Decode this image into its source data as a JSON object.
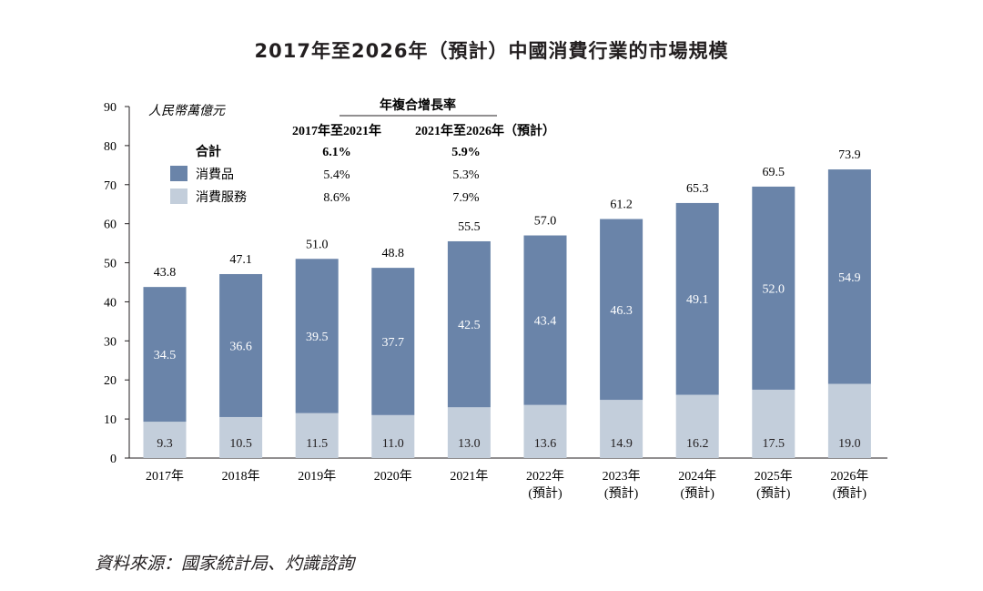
{
  "chart_data": {
    "type": "bar",
    "stacked": true,
    "title": "2017年至2026年（預計）中國消費行業的市場規模",
    "unit_label": "人民幣萬億元",
    "ylim": [
      0,
      90
    ],
    "yticks": [
      "0",
      "10",
      "20",
      "30",
      "40",
      "50",
      "60",
      "70",
      "80",
      "90"
    ],
    "categories": [
      {
        "year": "2017年",
        "note": ""
      },
      {
        "year": "2018年",
        "note": ""
      },
      {
        "year": "2019年",
        "note": ""
      },
      {
        "year": "2020年",
        "note": ""
      },
      {
        "year": "2021年",
        "note": ""
      },
      {
        "year": "2022年",
        "note": "(預計)"
      },
      {
        "year": "2023年",
        "note": "(預計)"
      },
      {
        "year": "2024年",
        "note": "(預計)"
      },
      {
        "year": "2025年",
        "note": "(預計)"
      },
      {
        "year": "2026年",
        "note": "(預計)"
      }
    ],
    "series": [
      {
        "name": "消費服務",
        "color": "#c3cedb",
        "values": [
          9.3,
          10.5,
          11.5,
          11.0,
          13.0,
          13.6,
          14.9,
          16.2,
          17.5,
          19.0
        ],
        "labels": [
          "9.3",
          "10.5",
          "11.5",
          "11.0",
          "13.0",
          "13.6",
          "14.9",
          "16.2",
          "17.5",
          "19.0"
        ]
      },
      {
        "name": "消費品",
        "color": "#6a84a9",
        "values": [
          34.5,
          36.6,
          39.5,
          37.7,
          42.5,
          43.4,
          46.3,
          49.1,
          52.0,
          54.9
        ],
        "labels": [
          "34.5",
          "36.6",
          "39.5",
          "37.7",
          "42.5",
          "43.4",
          "46.3",
          "49.1",
          "52.0",
          "54.9"
        ]
      }
    ],
    "totals": [
      43.8,
      47.1,
      51.0,
      48.8,
      55.5,
      57.0,
      61.2,
      65.3,
      69.5,
      73.9
    ],
    "total_labels": [
      "43.8",
      "47.1",
      "51.0",
      "48.8",
      "55.5",
      "57.0",
      "61.2",
      "65.3",
      "69.5",
      "73.9"
    ]
  },
  "cagr_table": {
    "header": "年複合增長率",
    "periods": [
      "2017年至2021年",
      "2021年至2026年（預計）"
    ],
    "rows": [
      {
        "label": "合計",
        "v1": "6.1%",
        "v2": "5.9%",
        "swatch": ""
      },
      {
        "label": "消費品",
        "v1": "5.4%",
        "v2": "5.3%",
        "swatch": "#6a84a9"
      },
      {
        "label": "消費服務",
        "v1": "8.6%",
        "v2": "7.9%",
        "swatch": "#c3cedb"
      }
    ]
  },
  "source": "資料來源：國家統計局、灼識諮詢"
}
